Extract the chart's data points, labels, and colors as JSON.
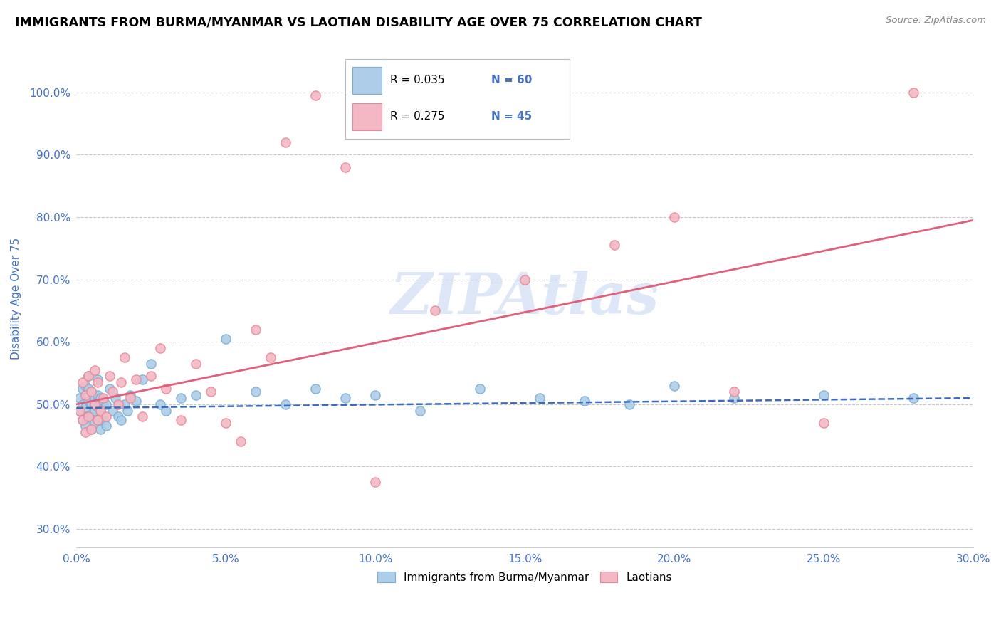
{
  "title": "IMMIGRANTS FROM BURMA/MYANMAR VS LAOTIAN DISABILITY AGE OVER 75 CORRELATION CHART",
  "source": "Source: ZipAtlas.com",
  "ylabel": "Disability Age Over 75",
  "xlim": [
    0.0,
    0.3
  ],
  "ylim": [
    0.27,
    1.07
  ],
  "xticks": [
    0.0,
    0.05,
    0.1,
    0.15,
    0.2,
    0.25,
    0.3
  ],
  "xticklabels": [
    "0.0%",
    "5.0%",
    "10.0%",
    "15.0%",
    "20.0%",
    "25.0%",
    "30.0%"
  ],
  "yticks": [
    0.3,
    0.4,
    0.5,
    0.6,
    0.7,
    0.8,
    0.9,
    1.0
  ],
  "yticklabels": [
    "30.0%",
    "40.0%",
    "50.0%",
    "60.0%",
    "70.0%",
    "80.0%",
    "90.0%",
    "100.0%"
  ],
  "blue_face": "#aecde8",
  "blue_edge": "#7aafd4",
  "pink_face": "#f4b8c4",
  "pink_edge": "#e88898",
  "trend_blue_color": "#3a6bbf",
  "trend_pink_color": "#e0607a",
  "grid_color": "#c8c8c8",
  "tick_color": "#4472c4",
  "R_blue": "0.035",
  "N_blue": "60",
  "R_pink": "0.275",
  "N_pink": "45",
  "blue_trend_x0": 0.0,
  "blue_trend_y0": 0.494,
  "blue_trend_x1": 0.3,
  "blue_trend_y1": 0.51,
  "pink_trend_x0": 0.0,
  "pink_trend_y0": 0.5,
  "pink_trend_x1": 0.3,
  "pink_trend_y1": 0.795,
  "blue_scatter_x": [
    0.001,
    0.001,
    0.002,
    0.002,
    0.002,
    0.003,
    0.003,
    0.003,
    0.004,
    0.004,
    0.004,
    0.004,
    0.005,
    0.005,
    0.005,
    0.005,
    0.006,
    0.006,
    0.006,
    0.007,
    0.007,
    0.007,
    0.007,
    0.008,
    0.008,
    0.008,
    0.009,
    0.009,
    0.01,
    0.01,
    0.011,
    0.012,
    0.013,
    0.014,
    0.015,
    0.016,
    0.017,
    0.018,
    0.02,
    0.022,
    0.025,
    0.028,
    0.03,
    0.035,
    0.04,
    0.05,
    0.06,
    0.07,
    0.08,
    0.09,
    0.1,
    0.115,
    0.135,
    0.155,
    0.17,
    0.185,
    0.2,
    0.22,
    0.25,
    0.28
  ],
  "blue_scatter_y": [
    0.49,
    0.51,
    0.475,
    0.5,
    0.525,
    0.465,
    0.495,
    0.53,
    0.48,
    0.505,
    0.525,
    0.545,
    0.46,
    0.48,
    0.5,
    0.52,
    0.47,
    0.49,
    0.51,
    0.475,
    0.495,
    0.515,
    0.54,
    0.46,
    0.49,
    0.51,
    0.475,
    0.505,
    0.465,
    0.5,
    0.525,
    0.49,
    0.51,
    0.48,
    0.475,
    0.5,
    0.49,
    0.515,
    0.505,
    0.54,
    0.565,
    0.5,
    0.49,
    0.51,
    0.515,
    0.605,
    0.52,
    0.5,
    0.525,
    0.51,
    0.515,
    0.49,
    0.525,
    0.51,
    0.505,
    0.5,
    0.53,
    0.51,
    0.515,
    0.51
  ],
  "pink_scatter_x": [
    0.001,
    0.002,
    0.002,
    0.003,
    0.003,
    0.004,
    0.004,
    0.005,
    0.005,
    0.006,
    0.006,
    0.007,
    0.007,
    0.008,
    0.009,
    0.01,
    0.011,
    0.012,
    0.014,
    0.015,
    0.016,
    0.018,
    0.02,
    0.022,
    0.025,
    0.028,
    0.03,
    0.035,
    0.04,
    0.045,
    0.05,
    0.055,
    0.06,
    0.065,
    0.07,
    0.08,
    0.09,
    0.1,
    0.12,
    0.15,
    0.18,
    0.2,
    0.22,
    0.25,
    0.28
  ],
  "pink_scatter_y": [
    0.49,
    0.475,
    0.535,
    0.455,
    0.515,
    0.48,
    0.545,
    0.46,
    0.52,
    0.5,
    0.555,
    0.475,
    0.535,
    0.49,
    0.51,
    0.48,
    0.545,
    0.52,
    0.5,
    0.535,
    0.575,
    0.51,
    0.54,
    0.48,
    0.545,
    0.59,
    0.525,
    0.475,
    0.565,
    0.52,
    0.47,
    0.44,
    0.62,
    0.575,
    0.92,
    0.995,
    0.88,
    0.375,
    0.65,
    0.7,
    0.755,
    0.8,
    0.52,
    0.47,
    1.0
  ],
  "watermark_text": "ZIPAtlas",
  "watermark_color": "#d0ddf5",
  "legend_blue_label": "Immigrants from Burma/Myanmar",
  "legend_pink_label": "Laotians"
}
